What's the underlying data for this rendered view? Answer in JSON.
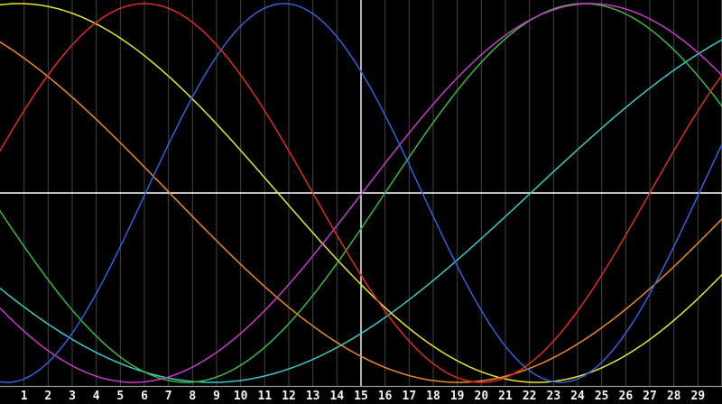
{
  "chart_data": {
    "type": "line",
    "title": "",
    "description": "Biorhythm-style chart: seven sine curves of different periods on a black background, with day-of-month ticks, a white zero midline and a white vertical marker at day 15",
    "x_axis": {
      "unit": "day",
      "min": 0,
      "max": 30,
      "tick_labels": [
        "1",
        "2",
        "3",
        "4",
        "5",
        "6",
        "7",
        "8",
        "9",
        "10",
        "11",
        "12",
        "13",
        "14",
        "15",
        "16",
        "17",
        "18",
        "19",
        "20",
        "21",
        "22",
        "23",
        "24",
        "25",
        "26",
        "27",
        "28",
        "29"
      ],
      "gridlines": true
    },
    "y_axis": {
      "min": -1,
      "max": 1,
      "midline_value": 0,
      "tick_labels": []
    },
    "zero_line": {
      "value": 0,
      "color": "#ffffff"
    },
    "today_line": {
      "day": 15,
      "color": "#ffffff"
    },
    "value_formula": "value(d) = amplitude * sin(2*PI*(d - ascending_zero_day) / period_days)",
    "series": [
      {
        "name": "blue-23-day",
        "color": "#2f62dd",
        "period_days": 23,
        "ascending_zero_day": 6.05,
        "amplitude": 1,
        "peak_day": 11.8,
        "trough_day": 0.3
      },
      {
        "name": "red-28-day",
        "color": "#dd2d22",
        "period_days": 28,
        "ascending_zero_day": -1.0,
        "amplitude": 1,
        "peak_day": 6.0,
        "trough_day": 20.0
      },
      {
        "name": "green-33-day",
        "color": "#3cb83c",
        "period_days": 33,
        "ascending_zero_day": 16.0,
        "amplitude": 1,
        "peak_day": 24.25,
        "trough_day": 7.75
      },
      {
        "name": "magenta-38-day",
        "color": "#c43cc4",
        "period_days": 38,
        "ascending_zero_day": 15.05,
        "amplitude": 1,
        "peak_day": 24.55,
        "trough_day": 5.55
      },
      {
        "name": "yellow-43-day",
        "color": "#e6e632",
        "period_days": 43,
        "ascending_zero_day": -9.95,
        "amplitude": 1,
        "peak_day": 0.8,
        "trough_day": 22.3
      },
      {
        "name": "orange-48-day",
        "color": "#ee8822",
        "period_days": 48,
        "ascending_zero_day": -16.95,
        "amplitude": 1,
        "peak_day": -4.95,
        "trough_day": 19.05
      },
      {
        "name": "cyan-53-day",
        "color": "#3cc8c8",
        "period_days": 53,
        "ascending_zero_day": -30.95,
        "amplitude": 1,
        "peak_day": -17.7,
        "trough_day": 8.8
      }
    ],
    "draw_order": [
      "cyan-53-day",
      "yellow-43-day",
      "orange-48-day",
      "green-33-day",
      "magenta-38-day",
      "blue-23-day",
      "red-28-day"
    ],
    "legend": "none"
  },
  "colors": {
    "background": "#000000",
    "gridline": "#424242",
    "axis_separator": "#999999",
    "reference_line": "#ffffff",
    "tick_label": "#f2f2f2"
  }
}
